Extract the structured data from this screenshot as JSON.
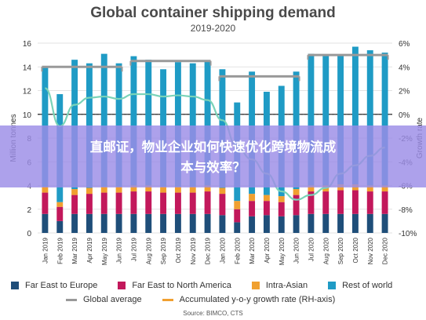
{
  "chart_data": {
    "type": "bar",
    "title": "Global container shipping demand",
    "subtitle": "2019-2020",
    "ylabel": "Million tonnes",
    "y2label": "Growth rate",
    "ylim": [
      0,
      16
    ],
    "y2lim": [
      -10,
      6
    ],
    "yticks": [
      "0",
      "2",
      "4",
      "6",
      "8",
      "10",
      "12",
      "14",
      "16"
    ],
    "y2ticks": [
      "-10%",
      "-8%",
      "-6%",
      "-4%",
      "-2%",
      "0%",
      "2%",
      "4%",
      "6%"
    ],
    "categories": [
      "Jan 2019",
      "Feb 2019",
      "Mar 2019",
      "Apr 2019",
      "May 2019",
      "Jun 2019",
      "Jul 2019",
      "Aug 2019",
      "Sep 2019",
      "Oct 2019",
      "Nov 2019",
      "Dec 2019",
      "Jan 2020",
      "Feb 2020",
      "Mar 2020",
      "Apr 2020",
      "May 2020",
      "Jun 2020",
      "Jul 2020",
      "Aug 2020",
      "Sep 2020",
      "Oct 2020",
      "Nov 2020",
      "Dec 2020"
    ],
    "stacked": true,
    "series": [
      {
        "name": "Far East to Europe",
        "color": "#1f4e79",
        "values": [
          1.6,
          1.0,
          1.6,
          1.6,
          1.6,
          1.6,
          1.6,
          1.6,
          1.6,
          1.6,
          1.6,
          1.6,
          1.5,
          0.9,
          1.4,
          1.5,
          1.4,
          1.5,
          1.6,
          1.6,
          1.6,
          1.6,
          1.6,
          1.6
        ]
      },
      {
        "name": "Far East to North America",
        "color": "#c2185b",
        "values": [
          1.8,
          1.2,
          1.6,
          1.7,
          1.8,
          1.8,
          1.9,
          1.9,
          1.8,
          1.8,
          1.8,
          1.9,
          1.8,
          1.1,
          1.3,
          1.2,
          1.2,
          1.7,
          1.9,
          1.9,
          2.0,
          2.0,
          1.9,
          1.9
        ]
      },
      {
        "name": "Intra-Asian",
        "color": "#f0a030",
        "values": [
          0.5,
          0.4,
          0.5,
          0.5,
          0.5,
          0.5,
          0.5,
          0.5,
          0.5,
          0.5,
          0.5,
          0.5,
          0.5,
          0.7,
          0.6,
          0.5,
          0.5,
          0.5,
          0.5,
          0.5,
          0.5,
          0.5,
          0.5,
          0.5
        ]
      },
      {
        "name": "Rest of world",
        "color": "#1f9bc5",
        "values": [
          10.1,
          9.1,
          10.9,
          10.5,
          11.2,
          10.4,
          10.9,
          10.6,
          9.9,
          10.5,
          10.4,
          10.5,
          10.0,
          8.3,
          10.3,
          8.7,
          9.3,
          9.9,
          11.1,
          11.0,
          10.9,
          11.6,
          11.4,
          11.2
        ]
      }
    ],
    "global_average": {
      "name": "Global average",
      "color": "#999999",
      "segments": [
        {
          "from": "Jan 2019",
          "to": "Jun 2019",
          "value": 14.0
        },
        {
          "from": "Jul 2019",
          "to": "Dec 2019",
          "value": 14.5
        },
        {
          "from": "Jan 2020",
          "to": "Jun 2020",
          "value": 13.2
        },
        {
          "from": "Jul 2020",
          "to": "Dec 2020",
          "value": 15.0
        }
      ]
    },
    "growth_rate": {
      "name": "Accumulated y-o-y growth rate (RH-axis)",
      "color": "#7ad3b8",
      "values": [
        2.2,
        -1.0,
        0.8,
        1.4,
        1.5,
        1.3,
        1.7,
        1.7,
        1.5,
        1.6,
        1.5,
        1.2,
        -0.5,
        -2.8,
        -3.8,
        -5.0,
        -6.5,
        -7.2,
        -6.8,
        -6.2,
        -5.0,
        -4.3,
        -3.5,
        -2.8
      ]
    },
    "legend": {
      "position": "bottom"
    }
  },
  "source": "Source: BIMCO, CTS",
  "overlay": {
    "line1": "直邮证，物业企业如何快速优化跨境物流成",
    "line2": "本与效率？"
  }
}
